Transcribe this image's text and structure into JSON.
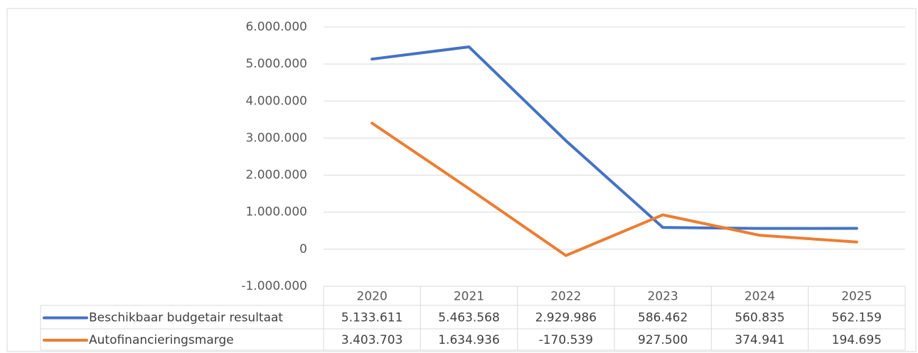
{
  "chart_data": {
    "type": "line",
    "categories": [
      "2020",
      "2021",
      "2022",
      "2023",
      "2024",
      "2025"
    ],
    "series": [
      {
        "name": "Beschikbaar budgetair resultaat",
        "color": "#4472c4",
        "values": [
          5133611,
          5463568,
          2929986,
          586462,
          560835,
          562159
        ],
        "value_labels": [
          "5.133.611",
          "5.463.568",
          "2.929.986",
          "586.462",
          "560.835",
          "562.159"
        ]
      },
      {
        "name": "Autofinancieringsmarge",
        "color": "#ed7d31",
        "values": [
          3403703,
          1634936,
          -170539,
          927500,
          374941,
          194695
        ],
        "value_labels": [
          "3.403.703",
          "1.634.936",
          "-170.539",
          "927.500",
          "374.941",
          "194.695"
        ]
      }
    ],
    "ylim": [
      -1000000,
      6000000
    ],
    "yticks": [
      {
        "value": -1000000,
        "label": "-1.000.000"
      },
      0,
      {
        "value": 1000000,
        "label": "1.000.000"
      },
      {
        "value": 2000000,
        "label": "2.000.000"
      },
      {
        "value": 3000000,
        "label": "3.000.000"
      },
      {
        "value": 4000000,
        "label": "4.000.000"
      },
      {
        "value": 5000000,
        "label": "5.000.000"
      },
      {
        "value": 6000000,
        "label": "6.000.000"
      }
    ],
    "grid": true
  }
}
